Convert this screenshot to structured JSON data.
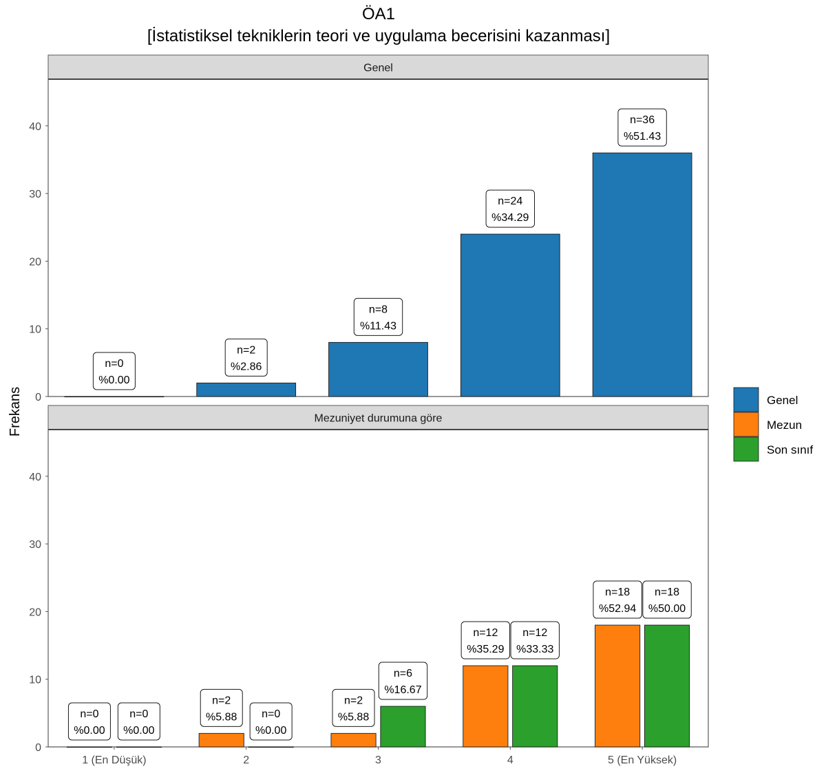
{
  "chart_data": {
    "type": "bar",
    "title": "ÖA1",
    "subtitle": "[İstatistiksel tekniklerin teori ve uygulama becerisini kazanması]",
    "ylabel": "Frekans",
    "xlabel": "",
    "categories": [
      "1 (En Düşük)",
      "2",
      "3",
      "4",
      "5 (En Yüksek)"
    ],
    "ylim": [
      0,
      47
    ],
    "y_ticks": [
      0,
      10,
      20,
      30,
      40
    ],
    "grid": false,
    "legend_position": "right",
    "colors": {
      "Genel": "#1f77b4",
      "Mezun": "#ff7f0e",
      "Son sınıf": "#2ca02c",
      "strip_bg": "#d9d9d9",
      "panel_border": "#5a5a5a"
    },
    "legend": [
      "Genel",
      "Mezun",
      "Son sınıf"
    ],
    "panels": [
      {
        "strip": "Genel",
        "series": [
          {
            "name": "Genel",
            "values": [
              0,
              2,
              8,
              24,
              36
            ],
            "labels": [
              [
                "n=0",
                "%0.00"
              ],
              [
                "n=2",
                "%2.86"
              ],
              [
                "n=8",
                "%11.43"
              ],
              [
                "n=24",
                "%34.29"
              ],
              [
                "n=36",
                "%51.43"
              ]
            ]
          }
        ]
      },
      {
        "strip": "Mezuniyet durumuna göre",
        "series": [
          {
            "name": "Mezun",
            "values": [
              0,
              2,
              2,
              12,
              18
            ],
            "labels": [
              [
                "n=0",
                "%0.00"
              ],
              [
                "n=2",
                "%5.88"
              ],
              [
                "n=2",
                "%5.88"
              ],
              [
                "n=12",
                "%35.29"
              ],
              [
                "n=18",
                "%52.94"
              ]
            ]
          },
          {
            "name": "Son sınıf",
            "values": [
              0,
              0,
              6,
              12,
              18
            ],
            "labels": [
              [
                "n=0",
                "%0.00"
              ],
              [
                "n=0",
                "%0.00"
              ],
              [
                "n=6",
                "%16.67"
              ],
              [
                "n=12",
                "%33.33"
              ],
              [
                "n=18",
                "%50.00"
              ]
            ]
          }
        ]
      }
    ]
  }
}
